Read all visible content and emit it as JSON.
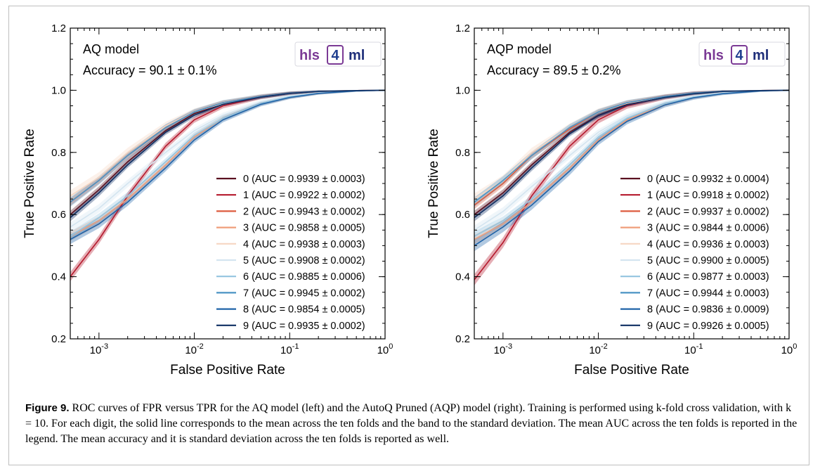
{
  "caption": {
    "label": "Figure 9.",
    "text": "ROC curves of FPR versus TPR for the AQ model (left) and the AutoQ Pruned (AQP) model (right). Training is performed using k-fold cross validation, with k = 10. For each digit, the solid line corresponds to the mean across the ten folds and the band to the standard deviation. The mean AUC across the ten folds is reported in the legend. The mean accuracy and it is standard deviation across the ten folds is reported as well."
  },
  "colors": [
    "#5a1020",
    "#b5182c",
    "#dd5b3e",
    "#ef9e7a",
    "#f6d6c2",
    "#d4e5f0",
    "#93c4df",
    "#4a93c4",
    "#1f63a8",
    "#0f2f63"
  ],
  "chart_data": [
    {
      "type": "line",
      "panel": "left",
      "xlabel": "False Positive Rate",
      "ylabel": "True Positive Rate",
      "xscale": "log",
      "xlim": [
        0.0005,
        1
      ],
      "ylim": [
        0.2,
        1.2
      ],
      "x_ticks": [
        "10^-3",
        "10^-2",
        "10^-1",
        "10^0"
      ],
      "y_ticks": [
        "0.2",
        "0.4",
        "0.6",
        "0.8",
        "1.0",
        "1.2"
      ],
      "annotation": {
        "model": "AQ model",
        "accuracy": "Accuracy = 90.1 ± 0.1%"
      },
      "logo": {
        "left": "hls",
        "middle": "4",
        "right": "ml"
      },
      "legend_position": "lower-right",
      "x": [
        0.0005,
        0.001,
        0.002,
        0.005,
        0.01,
        0.02,
        0.05,
        0.1,
        0.2,
        0.5,
        1.0
      ],
      "series": [
        {
          "name": "0 (AUC = 0.9939 ± 0.0003)",
          "band": 0.012,
          "values": [
            0.6,
            0.68,
            0.77,
            0.87,
            0.925,
            0.955,
            0.978,
            0.99,
            0.996,
            0.999,
            1.0
          ]
        },
        {
          "name": "1 (AUC = 0.9922 ± 0.0002)",
          "band": 0.015,
          "values": [
            0.4,
            0.52,
            0.66,
            0.82,
            0.905,
            0.95,
            0.978,
            0.99,
            0.996,
            0.999,
            1.0
          ]
        },
        {
          "name": "2 (AUC = 0.9943 ± 0.0002)",
          "band": 0.012,
          "values": [
            0.64,
            0.71,
            0.79,
            0.88,
            0.93,
            0.96,
            0.98,
            0.991,
            0.997,
            0.999,
            1.0
          ]
        },
        {
          "name": "3 (AUC = 0.9858 ± 0.0005)",
          "band": 0.015,
          "values": [
            0.53,
            0.58,
            0.65,
            0.76,
            0.85,
            0.91,
            0.958,
            0.978,
            0.99,
            0.998,
            1.0
          ]
        },
        {
          "name": "4 (AUC = 0.9938 ± 0.0003)",
          "band": 0.018,
          "values": [
            0.66,
            0.72,
            0.8,
            0.885,
            0.93,
            0.958,
            0.98,
            0.99,
            0.996,
            0.999,
            1.0
          ]
        },
        {
          "name": "5 (AUC = 0.9908 ± 0.0002)",
          "band": 0.015,
          "values": [
            0.56,
            0.62,
            0.7,
            0.8,
            0.87,
            0.92,
            0.963,
            0.982,
            0.992,
            0.998,
            1.0
          ]
        },
        {
          "name": "6 (AUC = 0.9885 ± 0.0006)",
          "band": 0.015,
          "values": [
            0.53,
            0.59,
            0.66,
            0.77,
            0.855,
            0.91,
            0.958,
            0.979,
            0.99,
            0.998,
            1.0
          ]
        },
        {
          "name": "7 (AUC = 0.9945 ± 0.0002)",
          "band": 0.015,
          "values": [
            0.64,
            0.71,
            0.79,
            0.88,
            0.93,
            0.96,
            0.98,
            0.991,
            0.997,
            0.999,
            1.0
          ]
        },
        {
          "name": "8 (AUC = 0.9854 ± 0.0005)",
          "band": 0.015,
          "values": [
            0.52,
            0.57,
            0.64,
            0.75,
            0.84,
            0.905,
            0.955,
            0.977,
            0.99,
            0.998,
            1.0
          ]
        },
        {
          "name": "9 (AUC = 0.9935 ± 0.0002)",
          "band": 0.012,
          "values": [
            0.59,
            0.67,
            0.76,
            0.865,
            0.92,
            0.955,
            0.978,
            0.99,
            0.996,
            0.999,
            1.0
          ]
        }
      ]
    },
    {
      "type": "line",
      "panel": "right",
      "xlabel": "False Positive Rate",
      "ylabel": "True Positive Rate",
      "xscale": "log",
      "xlim": [
        0.0005,
        1
      ],
      "ylim": [
        0.2,
        1.2
      ],
      "x_ticks": [
        "10^-3",
        "10^-2",
        "10^-1",
        "10^0"
      ],
      "y_ticks": [
        "0.2",
        "0.4",
        "0.6",
        "0.8",
        "1.0",
        "1.2"
      ],
      "annotation": {
        "model": "AQP model",
        "accuracy": "Accuracy = 89.5 ± 0.2%"
      },
      "logo": {
        "left": "hls",
        "middle": "4",
        "right": "ml"
      },
      "legend_position": "lower-right",
      "x": [
        0.0005,
        0.001,
        0.002,
        0.005,
        0.01,
        0.02,
        0.05,
        0.1,
        0.2,
        0.5,
        1.0
      ],
      "series": [
        {
          "name": "0 (AUC = 0.9932 ± 0.0004)",
          "band": 0.012,
          "values": [
            0.6,
            0.67,
            0.76,
            0.865,
            0.92,
            0.955,
            0.978,
            0.99,
            0.996,
            0.999,
            1.0
          ]
        },
        {
          "name": "1 (AUC = 0.9918 ± 0.0002)",
          "band": 0.018,
          "values": [
            0.39,
            0.51,
            0.66,
            0.82,
            0.905,
            0.95,
            0.978,
            0.99,
            0.996,
            0.999,
            1.0
          ]
        },
        {
          "name": "2 (AUC = 0.9937 ± 0.0002)",
          "band": 0.012,
          "values": [
            0.63,
            0.7,
            0.79,
            0.875,
            0.93,
            0.96,
            0.98,
            0.991,
            0.997,
            0.999,
            1.0
          ]
        },
        {
          "name": "3 (AUC = 0.9844 ± 0.0006)",
          "band": 0.015,
          "values": [
            0.52,
            0.57,
            0.64,
            0.75,
            0.84,
            0.905,
            0.955,
            0.977,
            0.99,
            0.998,
            1.0
          ]
        },
        {
          "name": "4 (AUC = 0.9936 ± 0.0003)",
          "band": 0.018,
          "values": [
            0.65,
            0.71,
            0.8,
            0.88,
            0.93,
            0.958,
            0.98,
            0.99,
            0.996,
            0.999,
            1.0
          ]
        },
        {
          "name": "5 (AUC = 0.9900 ± 0.0005)",
          "band": 0.015,
          "values": [
            0.55,
            0.61,
            0.69,
            0.79,
            0.865,
            0.918,
            0.962,
            0.981,
            0.992,
            0.998,
            1.0
          ]
        },
        {
          "name": "6 (AUC = 0.9877 ± 0.0003)",
          "band": 0.015,
          "values": [
            0.53,
            0.58,
            0.65,
            0.76,
            0.85,
            0.91,
            0.957,
            0.978,
            0.99,
            0.998,
            1.0
          ]
        },
        {
          "name": "7 (AUC = 0.9944 ± 0.0003)",
          "band": 0.015,
          "values": [
            0.64,
            0.71,
            0.79,
            0.88,
            0.93,
            0.96,
            0.98,
            0.991,
            0.997,
            0.999,
            1.0
          ]
        },
        {
          "name": "8 (AUC = 0.9836 ± 0.0009)",
          "band": 0.018,
          "values": [
            0.5,
            0.56,
            0.63,
            0.74,
            0.835,
            0.9,
            0.953,
            0.976,
            0.989,
            0.998,
            1.0
          ]
        },
        {
          "name": "9 (AUC = 0.9926 ± 0.0005)",
          "band": 0.012,
          "values": [
            0.59,
            0.66,
            0.75,
            0.86,
            0.918,
            0.953,
            0.977,
            0.989,
            0.996,
            0.999,
            1.0
          ]
        }
      ]
    }
  ]
}
